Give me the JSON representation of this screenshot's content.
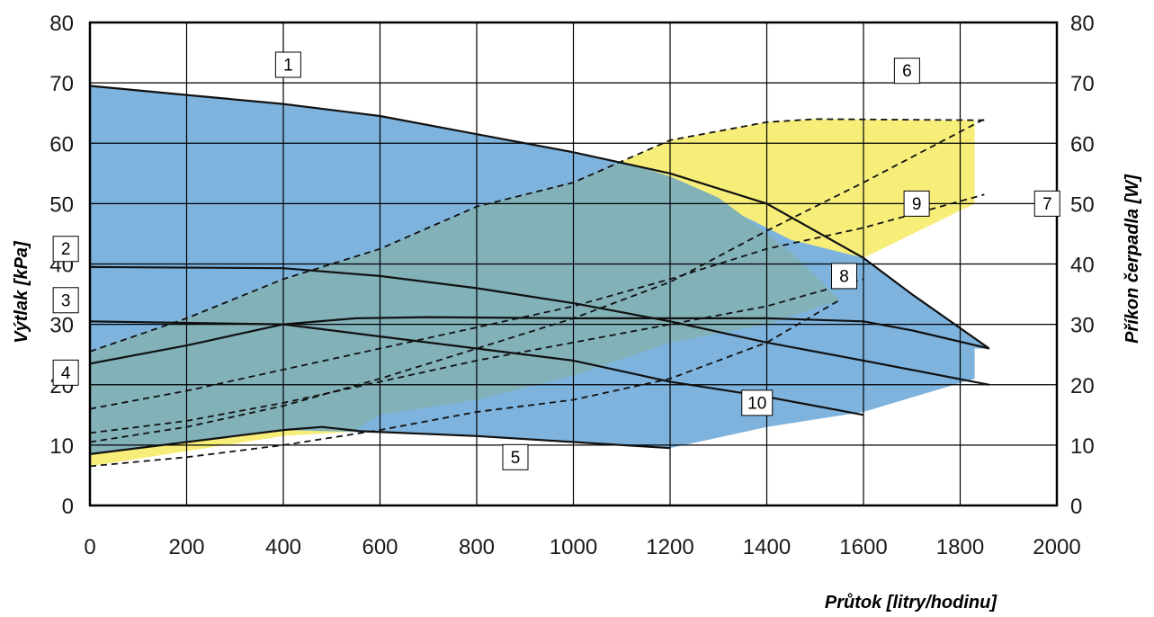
{
  "chart_data": {
    "type": "line",
    "xlabel": "Průtok [litry/hodinu]",
    "ylabel": "Výtlak [kPa]",
    "y2label": "Příkon čerpadla [W]",
    "xlim": [
      0,
      2000
    ],
    "ylim": [
      0,
      80
    ],
    "y2lim": [
      0,
      80
    ],
    "x_ticks": [
      0,
      200,
      400,
      600,
      800,
      1000,
      1200,
      1400,
      1600,
      1800,
      2000
    ],
    "y_ticks": [
      0,
      10,
      20,
      30,
      40,
      50,
      60,
      70,
      80
    ],
    "y2_ticks": [
      0,
      10,
      20,
      30,
      40,
      50,
      60,
      70,
      80
    ],
    "grid": true,
    "regions": [
      {
        "color": "#7eb3dd",
        "points": [
          [
            0,
            69.5
          ],
          [
            200,
            68
          ],
          [
            400,
            66.5
          ],
          [
            600,
            64.5
          ],
          [
            800,
            61.5
          ],
          [
            1000,
            58.5
          ],
          [
            1200,
            55
          ],
          [
            1400,
            50
          ],
          [
            1600,
            41
          ],
          [
            1700,
            35
          ],
          [
            1860,
            26
          ],
          [
            1830,
            26
          ],
          [
            1830,
            21
          ],
          [
            1600,
            15.5
          ],
          [
            1400,
            13
          ],
          [
            1200,
            9.5
          ],
          [
            800,
            11.5
          ],
          [
            600,
            12
          ],
          [
            400,
            12.5
          ],
          [
            200,
            10.5
          ],
          [
            0,
            8.5
          ]
        ]
      },
      {
        "color": "#f7ee7a",
        "points": [
          [
            1100,
            57
          ],
          [
            1200,
            60.5
          ],
          [
            1400,
            63.5
          ],
          [
            1500,
            64
          ],
          [
            1830,
            63.8
          ],
          [
            1830,
            50
          ],
          [
            1600,
            41
          ],
          [
            1450,
            44
          ],
          [
            1300,
            50
          ],
          [
            1200,
            54.5
          ]
        ]
      },
      {
        "color": "#f7ee7a",
        "points": [
          [
            0,
            8.5
          ],
          [
            200,
            10.5
          ],
          [
            400,
            12.5
          ],
          [
            480,
            13
          ],
          [
            560,
            12.3
          ],
          [
            400,
            11.5
          ],
          [
            200,
            9
          ],
          [
            0,
            6.5
          ]
        ]
      },
      {
        "color": "#82b1b8",
        "points": [
          [
            0,
            25.5
          ],
          [
            200,
            31
          ],
          [
            400,
            37.5
          ],
          [
            600,
            42.5
          ],
          [
            800,
            49.5
          ],
          [
            1000,
            53.5
          ],
          [
            1100,
            57
          ],
          [
            1200,
            54.5
          ],
          [
            1300,
            51
          ],
          [
            1450,
            42
          ],
          [
            1550,
            34
          ],
          [
            1400,
            30
          ],
          [
            1200,
            27
          ],
          [
            1000,
            21.5
          ],
          [
            800,
            17.5
          ],
          [
            600,
            15
          ],
          [
            540,
            12.2
          ],
          [
            400,
            12.5
          ],
          [
            200,
            10.5
          ],
          [
            0,
            8.5
          ]
        ]
      }
    ],
    "series": [
      {
        "name": "1",
        "style": "solid",
        "points": [
          [
            0,
            69.5
          ],
          [
            200,
            68
          ],
          [
            400,
            66.5
          ],
          [
            600,
            64.5
          ],
          [
            800,
            61.5
          ],
          [
            1000,
            58.5
          ],
          [
            1200,
            55
          ],
          [
            1400,
            50
          ],
          [
            1600,
            41
          ],
          [
            1700,
            35
          ],
          [
            1860,
            26
          ]
        ]
      },
      {
        "name": "2",
        "style": "solid",
        "points": [
          [
            0,
            39.5
          ],
          [
            400,
            39.3
          ],
          [
            600,
            38
          ],
          [
            800,
            36
          ],
          [
            1000,
            33.5
          ],
          [
            1200,
            30.5
          ],
          [
            1400,
            27
          ],
          [
            1600,
            24
          ],
          [
            1860,
            20
          ]
        ]
      },
      {
        "name": "3",
        "style": "solid",
        "points": [
          [
            0,
            30.5
          ],
          [
            400,
            30
          ],
          [
            600,
            28
          ],
          [
            800,
            26
          ],
          [
            1000,
            24
          ],
          [
            1200,
            20.5
          ],
          [
            1400,
            18
          ],
          [
            1600,
            15
          ]
        ]
      },
      {
        "name": "4",
        "style": "solid",
        "points": [
          [
            0,
            23.5
          ],
          [
            200,
            26.5
          ],
          [
            400,
            30
          ],
          [
            550,
            31
          ],
          [
            700,
            31.2
          ],
          [
            1000,
            31
          ],
          [
            1200,
            31
          ],
          [
            1400,
            31
          ],
          [
            1600,
            30.5
          ],
          [
            1700,
            29
          ],
          [
            1860,
            26
          ]
        ]
      },
      {
        "name": "5",
        "style": "solid",
        "points": [
          [
            0,
            8.5
          ],
          [
            200,
            10.5
          ],
          [
            400,
            12.5
          ],
          [
            480,
            13
          ],
          [
            560,
            12.3
          ],
          [
            800,
            11.5
          ],
          [
            1000,
            10.5
          ],
          [
            1200,
            9.5
          ]
        ]
      },
      {
        "name": "6",
        "style": "dashed",
        "points": [
          [
            0,
            25.5
          ],
          [
            200,
            31
          ],
          [
            400,
            37.5
          ],
          [
            600,
            42.5
          ],
          [
            800,
            49.5
          ],
          [
            1000,
            53.5
          ],
          [
            1200,
            60.5
          ],
          [
            1400,
            63.5
          ],
          [
            1500,
            64
          ],
          [
            1850,
            63.8
          ]
        ]
      },
      {
        "name": "7",
        "style": "dashed",
        "points": [
          [
            0,
            16
          ],
          [
            200,
            19
          ],
          [
            400,
            22.5
          ],
          [
            600,
            26
          ],
          [
            800,
            29.5
          ],
          [
            1000,
            33
          ],
          [
            1200,
            37.5
          ],
          [
            1400,
            42.5
          ],
          [
            1600,
            46
          ],
          [
            1850,
            51.5
          ]
        ]
      },
      {
        "name": "8",
        "style": "dashed",
        "points": [
          [
            0,
            12
          ],
          [
            200,
            14
          ],
          [
            400,
            17
          ],
          [
            600,
            20.5
          ],
          [
            800,
            24
          ],
          [
            1000,
            27
          ],
          [
            1200,
            30
          ],
          [
            1400,
            33
          ],
          [
            1600,
            37.5
          ]
        ]
      },
      {
        "name": "9",
        "style": "dashed",
        "points": [
          [
            0,
            10.5
          ],
          [
            200,
            13
          ],
          [
            400,
            16.5
          ],
          [
            600,
            21
          ],
          [
            800,
            26
          ],
          [
            1000,
            31
          ],
          [
            1200,
            37
          ],
          [
            1400,
            45.5
          ],
          [
            1600,
            53.5
          ],
          [
            1850,
            64
          ]
        ]
      },
      {
        "name": "10",
        "style": "dashed",
        "points": [
          [
            0,
            6.5
          ],
          [
            200,
            8
          ],
          [
            400,
            10
          ],
          [
            600,
            12.5
          ],
          [
            800,
            15.5
          ],
          [
            1000,
            17.5
          ],
          [
            1200,
            21
          ],
          [
            1400,
            27
          ],
          [
            1550,
            34
          ]
        ]
      }
    ],
    "annotations": [
      {
        "text": "1",
        "x": 410,
        "y": 73
      },
      {
        "text": "2",
        "x": -50,
        "y": 42.5
      },
      {
        "text": "3",
        "x": -50,
        "y": 34
      },
      {
        "text": "4",
        "x": -50,
        "y": 22
      },
      {
        "text": "5",
        "x": 880,
        "y": 8
      },
      {
        "text": "6",
        "x": 1690,
        "y": 72
      },
      {
        "text": "7",
        "x": 1980,
        "y": 50
      },
      {
        "text": "8",
        "x": 1560,
        "y": 38
      },
      {
        "text": "9",
        "x": 1710,
        "y": 50
      },
      {
        "text": "10",
        "x": 1380,
        "y": 17
      }
    ]
  }
}
